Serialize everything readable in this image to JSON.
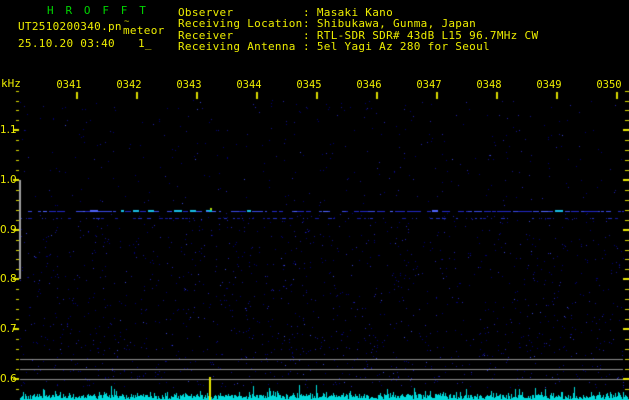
{
  "header": {
    "title": "H R O F F T",
    "filename": "UT2510200340.pn",
    "filename_artifact": "~",
    "mode": "meteor",
    "datetime": "25.10.20 03:40",
    "counter": "1_"
  },
  "info": {
    "rows": [
      {
        "label": "Observer",
        "value": ": Masaki Kano"
      },
      {
        "label": "Receiving Location",
        "value": ": Shibukawa, Gunma, Japan"
      },
      {
        "label": "Receiver",
        "value": ": RTL-SDR SDR# 43dB L15 96.7MHz CW"
      },
      {
        "label": "Receiving Antenna",
        "value": ": 5el Yagi Az 280 for Seoul"
      }
    ]
  },
  "chart_data": {
    "type": "heatmap",
    "subtype": "radio-meteor-spectrogram",
    "title": "HROFFT 10-minute spectrogram 25.10.20 03:40 UT",
    "x": {
      "tick_labels": [
        "0341",
        "0342",
        "0343",
        "0344",
        "0345",
        "0346",
        "0347",
        "0348",
        "0349",
        "0350"
      ],
      "start_time": "03:40",
      "end_time": "03:50",
      "minutes_per_division": 1
    },
    "y": {
      "unit": "kHz",
      "tick_labels": [
        "1.1",
        "1.0",
        "0.9",
        "0.8",
        "0.7",
        "0.6"
      ],
      "range_khz": [
        0.58,
        1.18
      ],
      "minor_tick_khz": 0.02
    },
    "carrier_lines": [
      {
        "freq_khz": 0.937,
        "strength": "strong",
        "style": "dashed blue"
      },
      {
        "freq_khz": 0.923,
        "strength": "weak",
        "style": "sparse dashed dark blue"
      }
    ],
    "meteor_echoes": [
      {
        "time": "03:43:10",
        "freq_khz": 0.94,
        "minutes_from_start": 3.17
      }
    ],
    "bottom_level_strip": {
      "description": "per-second signal level bars",
      "ref_line_freq_positions_khz": [
        0.62,
        0.6,
        0.58
      ],
      "spike_time": "03:43:10",
      "spike_minutes_from_start": 3.17
    },
    "grid": "off",
    "legend_position": "none"
  },
  "colors": {
    "background": "#000000",
    "title_green": "#00d400",
    "label_yellow": "#ecec00",
    "tick_yellow": "#dcdc00",
    "axis_gray": "#a0a0a0",
    "ref_line_gray": "#8c8c8c",
    "carrier_blue": "#2228c8",
    "carrier_mid_blue": "#3a4ae6",
    "carrier_bright_blue": "#5064ff",
    "carrier_cyan": "#18c0e8",
    "weak_line_blue": "#141a9e",
    "weak_line_blue2": "#2330c0",
    "noise1": "#000078",
    "noise2": "#12128c",
    "noise3": "#2222b0",
    "noise4": "#3a46d8",
    "strip_cyan": "#00dcdc",
    "echo_yellow_green": "#b4dc00",
    "echo_cyan": "#00c8dc",
    "spike_yellow": "#e8e800"
  }
}
